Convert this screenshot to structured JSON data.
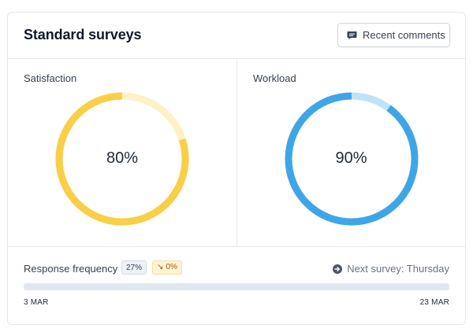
{
  "header": {
    "title": "Standard surveys",
    "recent_comments_label": "Recent comments",
    "recent_comments_icon": "comment-icon"
  },
  "satisfaction": {
    "label": "Satisfaction",
    "value": 80,
    "value_text": "80%",
    "color": "#f9cf48",
    "track_color": "#fdf1c6"
  },
  "workload": {
    "label": "Workload",
    "value": 90,
    "value_text": "90%",
    "color": "#3ea6e6",
    "track_color": "#bfe3f8"
  },
  "response_frequency": {
    "label": "Response frequency",
    "percent_badge": "27%",
    "change_badge": "0%",
    "change_icon": "trend-down-icon",
    "next_survey": "Next survey: Thursday",
    "next_survey_icon": "arrow-right-circle-icon",
    "progress": 0,
    "start_date": "3 MAR",
    "end_date": "23 MAR"
  }
}
